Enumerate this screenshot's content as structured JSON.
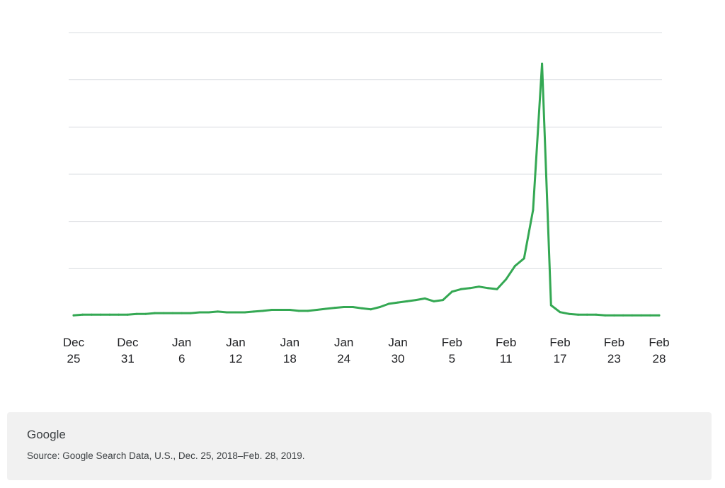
{
  "chart_data": {
    "type": "line",
    "title": "",
    "xlabel": "",
    "ylabel": "",
    "grid": true,
    "y_tick_labels_shown": false,
    "ylim": [
      0,
      100
    ],
    "x_ticks": [
      {
        "line1": "Dec",
        "line2": "25",
        "date": "2018-12-25"
      },
      {
        "line1": "Dec",
        "line2": "31",
        "date": "2018-12-31"
      },
      {
        "line1": "Jan",
        "line2": "6",
        "date": "2019-01-06"
      },
      {
        "line1": "Jan",
        "line2": "12",
        "date": "2019-01-12"
      },
      {
        "line1": "Jan",
        "line2": "18",
        "date": "2019-01-18"
      },
      {
        "line1": "Jan",
        "line2": "24",
        "date": "2019-01-24"
      },
      {
        "line1": "Jan",
        "line2": "30",
        "date": "2019-01-30"
      },
      {
        "line1": "Feb",
        "line2": "5",
        "date": "2019-02-05"
      },
      {
        "line1": "Feb",
        "line2": "11",
        "date": "2019-02-11"
      },
      {
        "line1": "Feb",
        "line2": "17",
        "date": "2019-02-17"
      },
      {
        "line1": "Feb",
        "line2": "23",
        "date": "2019-02-23"
      },
      {
        "line1": "Feb",
        "line2": "28",
        "date": "2019-02-28"
      }
    ],
    "series": [
      {
        "color": "#34a853",
        "points": [
          [
            "2018-12-25",
            0.2
          ],
          [
            "2018-12-26",
            0.5
          ],
          [
            "2018-12-27",
            0.5
          ],
          [
            "2018-12-28",
            0.5
          ],
          [
            "2018-12-29",
            0.5
          ],
          [
            "2018-12-30",
            0.5
          ],
          [
            "2018-12-31",
            0.5
          ],
          [
            "2019-01-01",
            0.8
          ],
          [
            "2019-01-02",
            0.8
          ],
          [
            "2019-01-03",
            1.1
          ],
          [
            "2019-01-04",
            1.1
          ],
          [
            "2019-01-05",
            1.1
          ],
          [
            "2019-01-06",
            1.1
          ],
          [
            "2019-01-07",
            1.1
          ],
          [
            "2019-01-08",
            1.4
          ],
          [
            "2019-01-09",
            1.4
          ],
          [
            "2019-01-10",
            1.7
          ],
          [
            "2019-01-11",
            1.4
          ],
          [
            "2019-01-12",
            1.4
          ],
          [
            "2019-01-13",
            1.4
          ],
          [
            "2019-01-14",
            1.7
          ],
          [
            "2019-01-15",
            2.0
          ],
          [
            "2019-01-16",
            2.4
          ],
          [
            "2019-01-17",
            2.4
          ],
          [
            "2019-01-18",
            2.4
          ],
          [
            "2019-01-19",
            2.0
          ],
          [
            "2019-01-20",
            2.0
          ],
          [
            "2019-01-21",
            2.4
          ],
          [
            "2019-01-22",
            2.8
          ],
          [
            "2019-01-23",
            3.2
          ],
          [
            "2019-01-24",
            3.5
          ],
          [
            "2019-01-25",
            3.5
          ],
          [
            "2019-01-26",
            3.0
          ],
          [
            "2019-01-27",
            2.6
          ],
          [
            "2019-01-28",
            3.5
          ],
          [
            "2019-01-29",
            4.8
          ],
          [
            "2019-01-30",
            5.3
          ],
          [
            "2019-01-31",
            5.8
          ],
          [
            "2019-02-01",
            6.3
          ],
          [
            "2019-02-02",
            6.9
          ],
          [
            "2019-02-03",
            5.8
          ],
          [
            "2019-02-04",
            6.3
          ],
          [
            "2019-02-05",
            9.6
          ],
          [
            "2019-02-06",
            10.6
          ],
          [
            "2019-02-07",
            11.0
          ],
          [
            "2019-02-08",
            11.6
          ],
          [
            "2019-02-09",
            11.0
          ],
          [
            "2019-02-10",
            10.6
          ],
          [
            "2019-02-11",
            14.5
          ],
          [
            "2019-02-12",
            19.8
          ],
          [
            "2019-02-13",
            22.8
          ],
          [
            "2019-02-14",
            42.0
          ],
          [
            "2019-02-15",
            100
          ],
          [
            "2019-02-16",
            4.2
          ],
          [
            "2019-02-17",
            1.5
          ],
          [
            "2019-02-18",
            0.8
          ],
          [
            "2019-02-19",
            0.5
          ],
          [
            "2019-02-20",
            0.5
          ],
          [
            "2019-02-21",
            0.5
          ],
          [
            "2019-02-22",
            0.2
          ],
          [
            "2019-02-23",
            0.2
          ],
          [
            "2019-02-24",
            0.2
          ],
          [
            "2019-02-25",
            0.2
          ],
          [
            "2019-02-26",
            0.2
          ],
          [
            "2019-02-27",
            0.2
          ],
          [
            "2019-02-28",
            0.2
          ]
        ]
      }
    ]
  },
  "footer": {
    "brand": "Google",
    "source": "Source: Google Search Data, U.S., Dec. 25, 2018–Feb. 28, 2019."
  }
}
